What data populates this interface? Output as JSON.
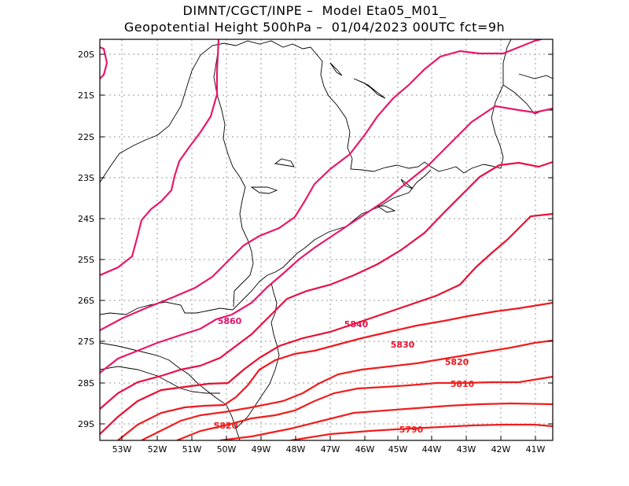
{
  "title_line1": "DIMNT/CGCT/INPE –  Model Eta05_M01_",
  "title_line2": "Geopotential Height 500hPa –  01/04/2023 00UTC fct=9h",
  "lat_ticks": [
    "20S",
    "21S",
    "22S",
    "23S",
    "24S",
    "25S",
    "26S",
    "27S",
    "28S",
    "29S"
  ],
  "lon_ticks": [
    "53W",
    "52W",
    "51W",
    "50W",
    "49W",
    "48W",
    "47W",
    "46W",
    "45W",
    "44W",
    "43W",
    "42W",
    "41W"
  ],
  "contour_labels": [
    "5860",
    "5840",
    "5830",
    "5820",
    "5810",
    "5790",
    "5820"
  ],
  "colors": {
    "contour_high": "#e8186a",
    "contour_mid": "#e8103a",
    "contour_low": "#f01e1e",
    "coastline": "#000000",
    "grid": "#999999"
  }
}
